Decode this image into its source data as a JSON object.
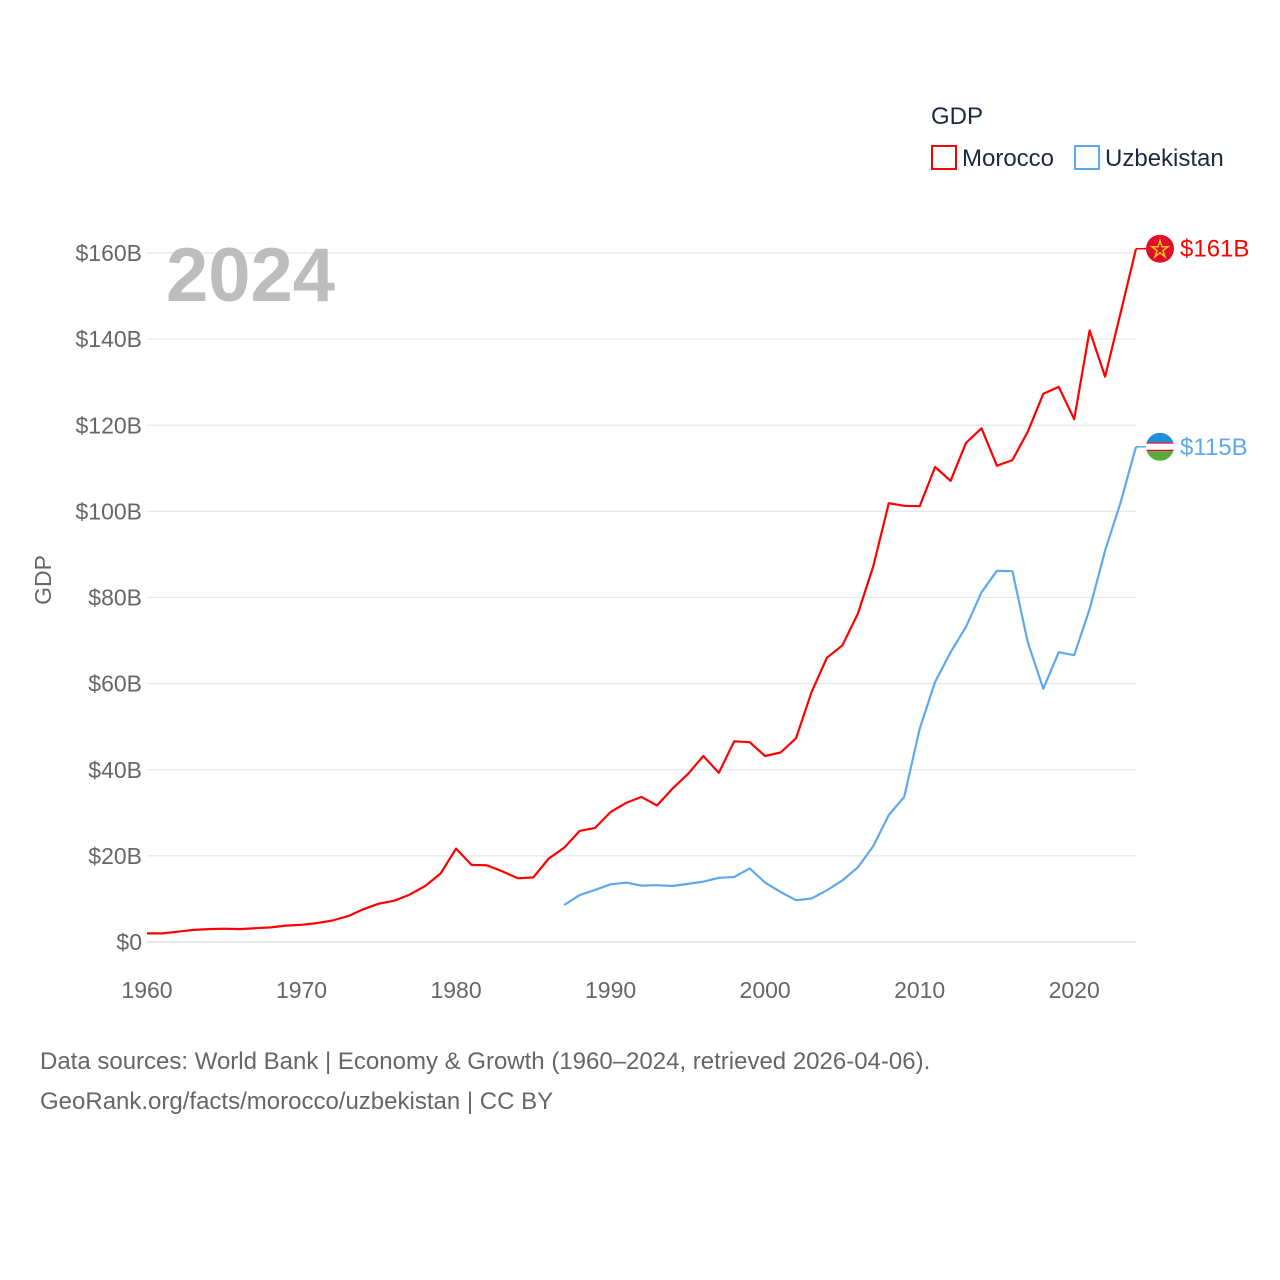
{
  "chart_data": {
    "type": "line",
    "title": "GDP",
    "ylabel": "GDP",
    "xlabel": "",
    "year_label": "2024",
    "xlim": [
      1960,
      2024
    ],
    "ylim": [
      0,
      160
    ],
    "x_ticks": [
      1960,
      1970,
      1980,
      1990,
      2000,
      2010,
      2020
    ],
    "y_ticks": [
      0,
      20,
      40,
      60,
      80,
      100,
      120,
      140,
      160
    ],
    "y_tick_labels": [
      "$0",
      "$20B",
      "$40B",
      "$60B",
      "$80B",
      "$100B",
      "$120B",
      "$140B",
      "$160B"
    ],
    "grid": true,
    "legend_position": "top-right",
    "units": "billion USD",
    "series": [
      {
        "name": "Morocco",
        "color": "#ff0000",
        "end_label": "$161B",
        "flag": "morocco-flag",
        "start_year": 1960,
        "values": [
          2.0,
          2.0,
          2.4,
          2.8,
          3.0,
          3.1,
          3.0,
          3.2,
          3.4,
          3.8,
          4.0,
          4.4,
          5.0,
          6.0,
          7.6,
          8.9,
          9.6,
          11.0,
          13.0,
          15.9,
          21.7,
          17.9,
          17.8,
          16.4,
          14.8,
          15.0,
          19.4,
          21.9,
          25.8,
          26.5,
          30.2,
          32.3,
          33.7,
          31.7,
          35.6,
          39.0,
          43.2,
          39.3,
          46.6,
          46.4,
          43.2,
          44.0,
          47.3,
          58.0,
          66.0,
          68.9,
          76.2,
          87.3,
          101.9,
          101.3,
          101.2,
          110.3,
          107.1,
          115.9,
          119.3,
          110.6,
          111.9,
          118.5,
          127.3,
          128.9,
          121.4,
          142.0,
          131.3,
          146.0,
          161.0
        ]
      },
      {
        "name": "Uzbekistan",
        "color": "#5ea8ee",
        "end_label": "$115B",
        "flag": "uzbekistan-flag",
        "start_year": 1987,
        "values": [
          8.6,
          10.9,
          12.1,
          13.4,
          13.8,
          13.1,
          13.2,
          13.0,
          13.5,
          14.0,
          14.9,
          15.1,
          17.1,
          13.8,
          11.6,
          9.7,
          10.1,
          12.0,
          14.3,
          17.3,
          22.3,
          29.5,
          33.7,
          49.5,
          60.4,
          67.3,
          73.2,
          81.2,
          86.2,
          86.1,
          69.6,
          58.8,
          67.3,
          66.6,
          77.3,
          90.9,
          102.0,
          115.0
        ]
      }
    ]
  },
  "footer": {
    "line1": "Data sources: World Bank | Economy & Growth (1960–2024, retrieved 2026-04-06).",
    "line2": "GeoRank.org/facts/morocco/uzbekistan | CC BY"
  }
}
